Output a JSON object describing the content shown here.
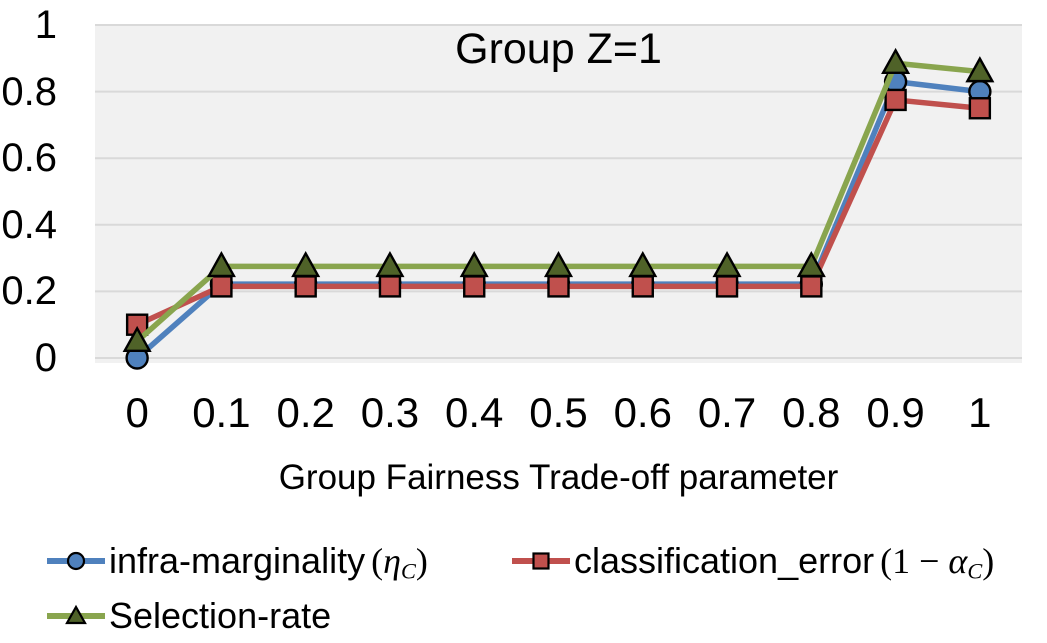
{
  "chart_data": {
    "type": "line",
    "title": "Group Z=1",
    "xlabel": "Group Fairness Trade-off parameter",
    "x": [
      0,
      0.1,
      0.2,
      0.3,
      0.4,
      0.5,
      0.6,
      0.7,
      0.8,
      0.9,
      1
    ],
    "x_tick_labels": [
      "0",
      "0.1",
      "0.2",
      "0.3",
      "0.4",
      "0.5",
      "0.6",
      "0.7",
      "0.8",
      "0.9",
      "1"
    ],
    "y_ticks": [
      0,
      0.2,
      0.4,
      0.6,
      0.8,
      1
    ],
    "y_tick_labels": [
      "0",
      "0.2",
      "0.4",
      "0.6",
      "0.8",
      "1"
    ],
    "ylim": [
      0,
      1
    ],
    "grid": "horizontal",
    "legend_position": "bottom",
    "colors": {
      "plot_background": "#F1F1F1",
      "gridline": "#D9D9D9",
      "marker_outline": "#000000",
      "text": "#000000"
    },
    "series": [
      {
        "name": "infra-marginality",
        "math": {
          "prefix": "(",
          "var": "η",
          "sub": "C",
          "suffix": ")"
        },
        "marker": "circle",
        "color": "#4F81BD",
        "marker_fill": "#4F81BD",
        "values": [
          0,
          0.222,
          0.222,
          0.222,
          0.222,
          0.222,
          0.222,
          0.222,
          0.222,
          0.83,
          0.8
        ]
      },
      {
        "name": "classification_error",
        "math": {
          "prefix": "(1 − ",
          "var": "α",
          "sub": "C",
          "suffix": ")"
        },
        "marker": "square",
        "color": "#C0504D",
        "marker_fill": "#C0504D",
        "values": [
          0.1,
          0.215,
          0.215,
          0.215,
          0.215,
          0.215,
          0.215,
          0.215,
          0.215,
          0.775,
          0.75
        ]
      },
      {
        "name": "Selection-rate",
        "math": null,
        "marker": "triangle",
        "color": "#89A54E",
        "marker_fill": "#4F6228",
        "values": [
          0.05,
          0.275,
          0.275,
          0.275,
          0.275,
          0.275,
          0.275,
          0.275,
          0.275,
          0.885,
          0.86
        ]
      }
    ]
  }
}
